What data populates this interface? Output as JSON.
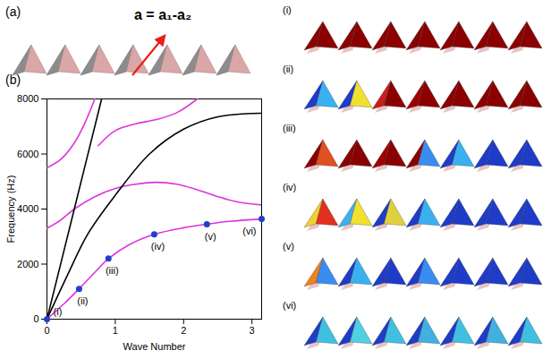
{
  "figure": {
    "panel_a": "(a)",
    "panel_b": "(b)",
    "lattice_vector": "a = a₁-a₂",
    "mode_labels": [
      "(i)",
      "(ii)",
      "(iii)",
      "(iv)",
      "(v)",
      "(vi)"
    ]
  },
  "chart_data": {
    "type": "line",
    "x_label": "Wave Number",
    "y_label": "Frequency (Hz)",
    "xlim": [
      0,
      3.1416
    ],
    "ylim": [
      0,
      8000
    ],
    "xticks": [
      0,
      1,
      2,
      3
    ],
    "yticks": [
      0,
      2000,
      4000,
      6000,
      8000
    ],
    "grid": false,
    "series": [
      {
        "color": "#dd33dd",
        "x": [
          0,
          0.25,
          0.47,
          0.7,
          0.9,
          1.2,
          1.57,
          2.0,
          2.34,
          2.7,
          3.1416
        ],
        "values": [
          0,
          560,
          1100,
          1700,
          2200,
          2700,
          3080,
          3320,
          3450,
          3560,
          3640
        ]
      },
      {
        "color": "#dd33dd",
        "x": [
          0,
          0.2,
          0.4,
          0.7,
          1.0,
          1.3,
          1.6,
          1.9,
          2.2,
          2.5,
          2.8,
          3.1416
        ],
        "values": [
          3300,
          3600,
          4000,
          4450,
          4750,
          4900,
          4970,
          4900,
          4700,
          4450,
          4250,
          4150
        ]
      },
      {
        "color": "#dd33dd",
        "x": [
          0,
          0.2,
          0.4,
          0.55,
          0.7
        ],
        "values": [
          5500,
          5800,
          6400,
          7100,
          8000
        ]
      },
      {
        "color": "#dd33dd",
        "x": [
          0.75,
          1.0,
          1.3,
          1.6,
          1.9,
          2.2
        ],
        "values": [
          6300,
          6850,
          7100,
          7250,
          7500,
          8000
        ]
      },
      {
        "color": "#000000",
        "x": [
          0,
          0.4,
          0.8
        ],
        "values": [
          0,
          4000,
          8000
        ]
      },
      {
        "color": "#000000",
        "x": [
          0,
          0.3,
          0.6,
          1.0,
          1.5,
          2.0,
          2.5,
          3.1416
        ],
        "values": [
          0,
          1600,
          3100,
          4500,
          6000,
          6900,
          7350,
          7480
        ]
      }
    ],
    "points": {
      "color": "#1f3fd0",
      "marker": "circle",
      "x": [
        0,
        0.47,
        0.9,
        1.57,
        2.34,
        3.1416
      ],
      "values": [
        0,
        1100,
        2200,
        3080,
        3450,
        3640
      ],
      "labels": [
        "(i)",
        "(ii)",
        "(iii)",
        "(iv)",
        "(v)",
        "(vi)"
      ]
    }
  }
}
